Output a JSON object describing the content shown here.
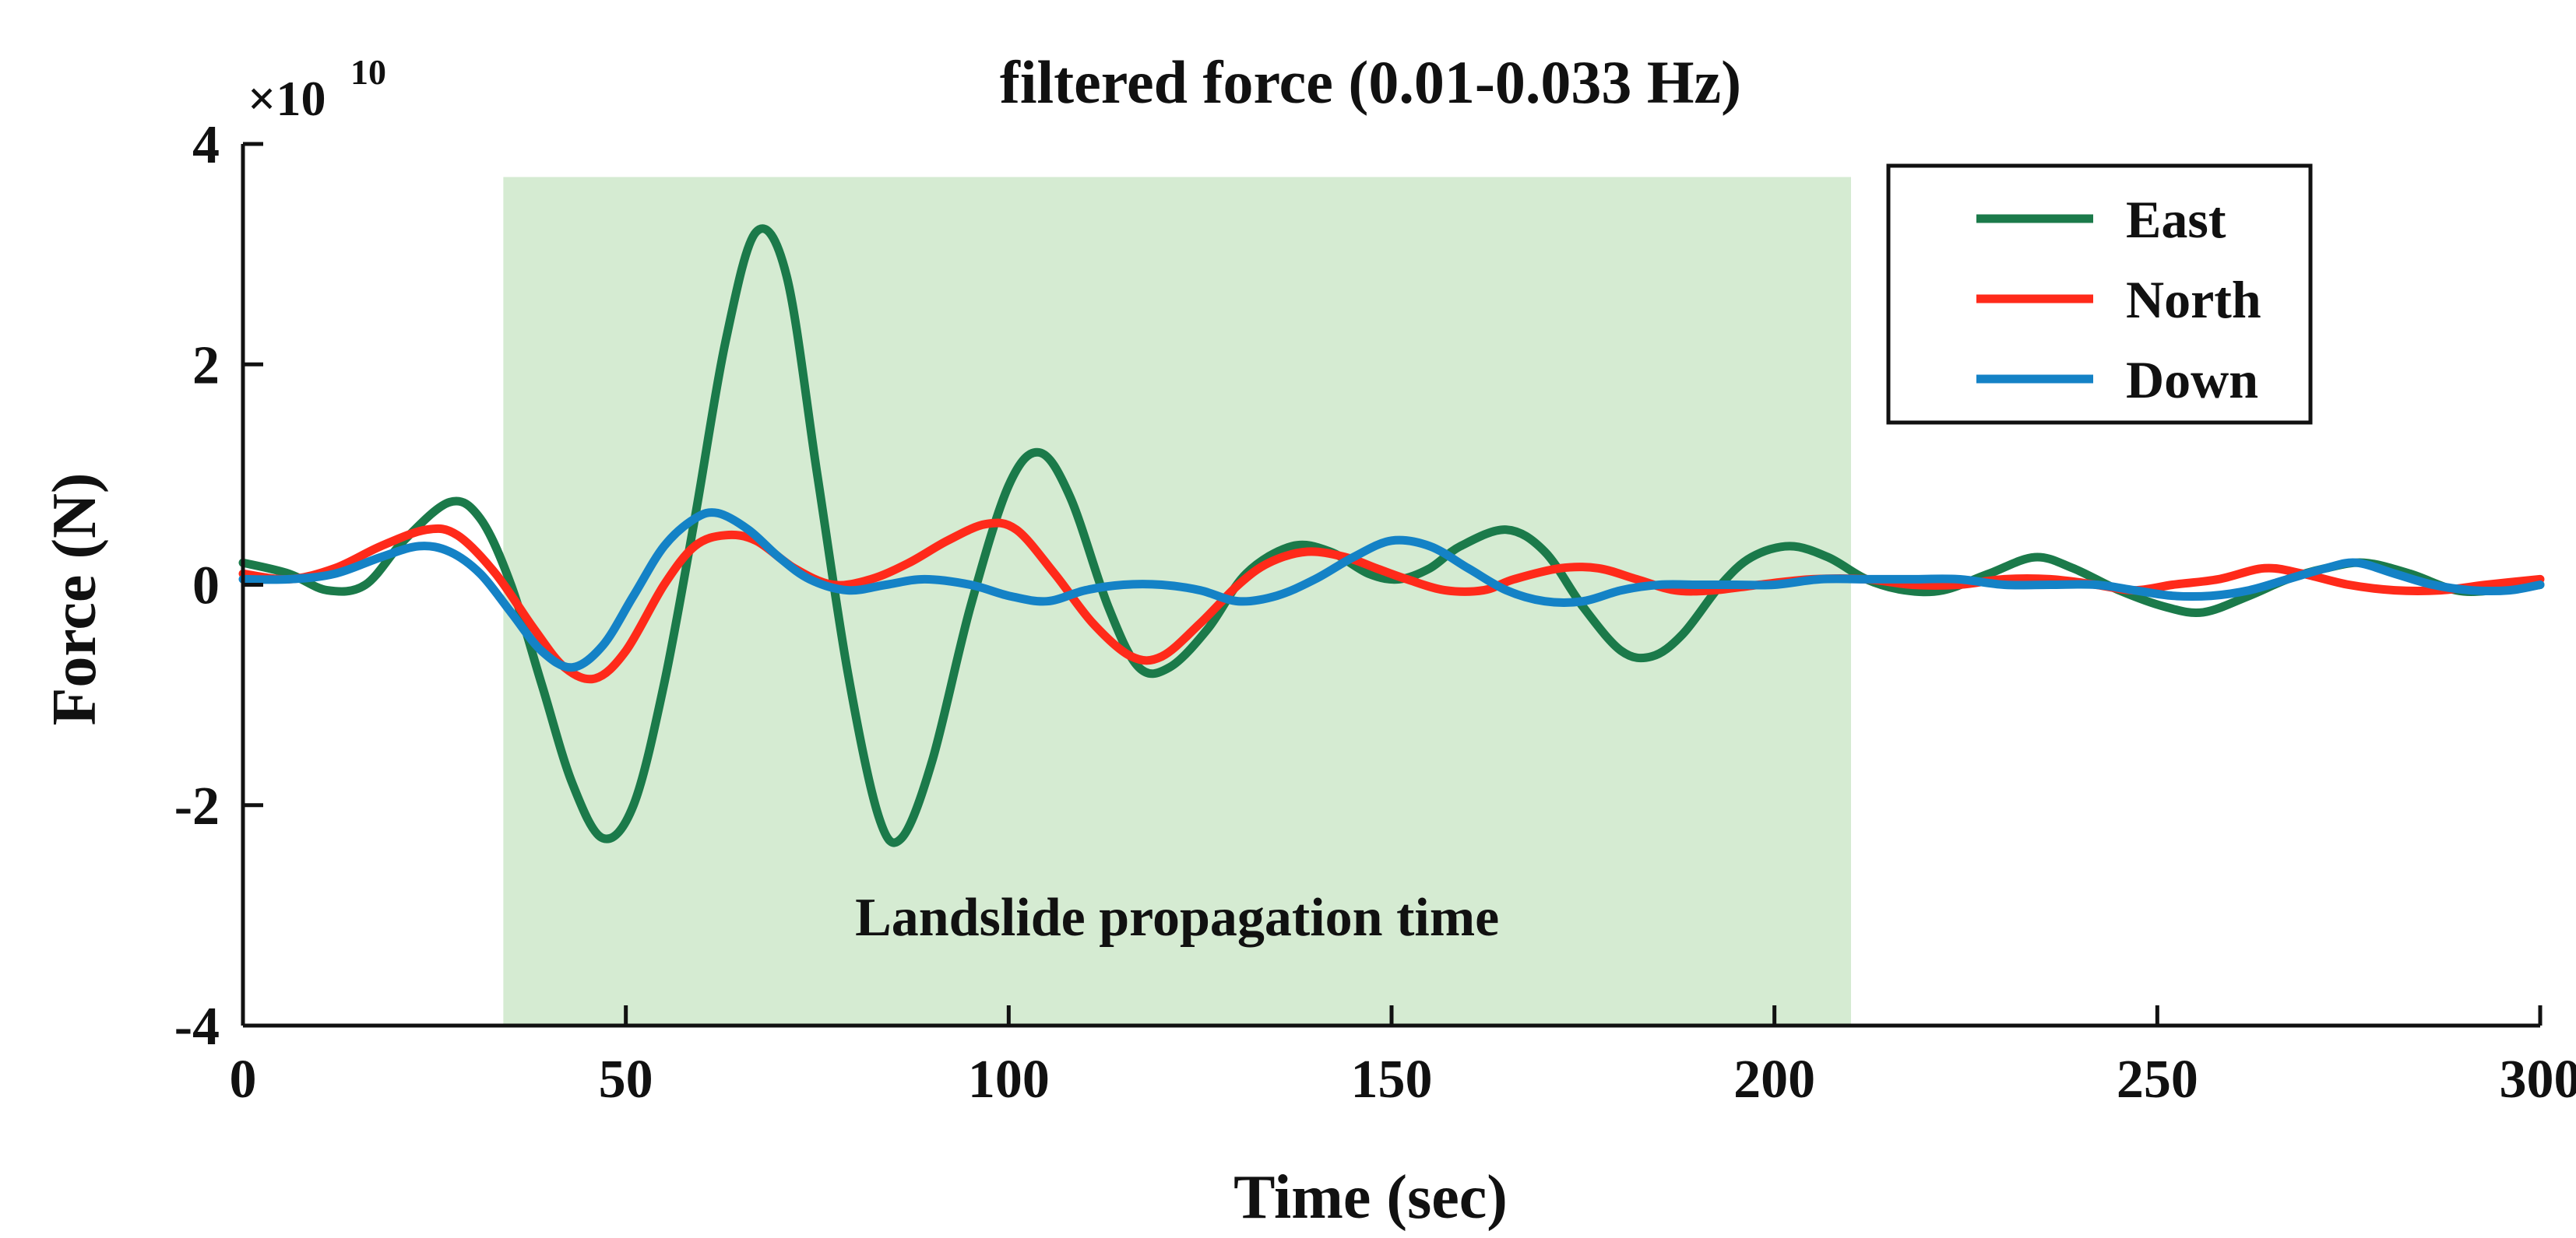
{
  "chart_data": {
    "type": "line",
    "title": "filtered force (0.01-0.033 Hz)",
    "xlabel": "Time (sec)",
    "ylabel": "Force (N)",
    "exponent_prefix": "×10",
    "exponent_power": "10",
    "xlim": [
      0,
      300
    ],
    "ylim": [
      -4,
      4
    ],
    "xticks": [
      0,
      50,
      100,
      150,
      200,
      250,
      300
    ],
    "yticks": [
      -4,
      -2,
      0,
      2,
      4
    ],
    "xtick_labels": [
      "0",
      "50",
      "100",
      "150",
      "200",
      "250",
      "300"
    ],
    "ytick_labels": [
      "-4",
      "-2",
      "0",
      "2",
      "4"
    ],
    "grid": false,
    "legend_position": "top-right",
    "shaded_region": {
      "x_start": 34,
      "x_end": 210,
      "y_start": -4,
      "y_end": 3.7,
      "label": "Landslide propagation time",
      "color": "#d5ebd2"
    },
    "series": [
      {
        "name": "East",
        "color": "#1b7a4a",
        "points": [
          [
            0,
            0.2
          ],
          [
            6,
            0.1
          ],
          [
            11,
            -0.05
          ],
          [
            16,
            0.0
          ],
          [
            21,
            0.4
          ],
          [
            27,
            0.75
          ],
          [
            31,
            0.6
          ],
          [
            35,
            0.0
          ],
          [
            39,
            -0.9
          ],
          [
            43,
            -1.8
          ],
          [
            47,
            -2.3
          ],
          [
            51,
            -2.0
          ],
          [
            55,
            -0.9
          ],
          [
            59,
            0.6
          ],
          [
            63,
            2.2
          ],
          [
            67,
            3.2
          ],
          [
            71,
            2.8
          ],
          [
            75,
            1.0
          ],
          [
            79,
            -0.8
          ],
          [
            83,
            -2.1
          ],
          [
            86,
            -2.3
          ],
          [
            90,
            -1.6
          ],
          [
            95,
            -0.2
          ],
          [
            100,
            0.9
          ],
          [
            104,
            1.2
          ],
          [
            108,
            0.8
          ],
          [
            113,
            -0.2
          ],
          [
            117,
            -0.75
          ],
          [
            121,
            -0.75
          ],
          [
            126,
            -0.4
          ],
          [
            131,
            0.1
          ],
          [
            137,
            0.35
          ],
          [
            142,
            0.3
          ],
          [
            147,
            0.1
          ],
          [
            151,
            0.05
          ],
          [
            155,
            0.15
          ],
          [
            159,
            0.35
          ],
          [
            165,
            0.5
          ],
          [
            170,
            0.3
          ],
          [
            175,
            -0.2
          ],
          [
            180,
            -0.6
          ],
          [
            184,
            -0.65
          ],
          [
            188,
            -0.45
          ],
          [
            193,
            0.0
          ],
          [
            197,
            0.25
          ],
          [
            202,
            0.35
          ],
          [
            207,
            0.25
          ],
          [
            212,
            0.05
          ],
          [
            217,
            -0.05
          ],
          [
            222,
            -0.05
          ],
          [
            228,
            0.1
          ],
          [
            234,
            0.25
          ],
          [
            239,
            0.15
          ],
          [
            245,
            -0.05
          ],
          [
            251,
            -0.2
          ],
          [
            256,
            -0.25
          ],
          [
            262,
            -0.1
          ],
          [
            267,
            0.05
          ],
          [
            272,
            0.15
          ],
          [
            277,
            0.2
          ],
          [
            283,
            0.1
          ],
          [
            289,
            -0.05
          ],
          [
            294,
            -0.05
          ],
          [
            300,
            0.0
          ]
        ]
      },
      {
        "name": "North",
        "color": "#ff2a1a",
        "points": [
          [
            0,
            0.1
          ],
          [
            6,
            0.05
          ],
          [
            12,
            0.15
          ],
          [
            18,
            0.35
          ],
          [
            24,
            0.5
          ],
          [
            28,
            0.45
          ],
          [
            33,
            0.1
          ],
          [
            38,
            -0.4
          ],
          [
            42,
            -0.75
          ],
          [
            46,
            -0.85
          ],
          [
            50,
            -0.6
          ],
          [
            55,
            0.0
          ],
          [
            59,
            0.35
          ],
          [
            63,
            0.45
          ],
          [
            67,
            0.4
          ],
          [
            72,
            0.15
          ],
          [
            77,
            0.0
          ],
          [
            82,
            0.05
          ],
          [
            87,
            0.2
          ],
          [
            92,
            0.4
          ],
          [
            97,
            0.55
          ],
          [
            101,
            0.5
          ],
          [
            106,
            0.1
          ],
          [
            111,
            -0.35
          ],
          [
            116,
            -0.65
          ],
          [
            120,
            -0.65
          ],
          [
            125,
            -0.35
          ],
          [
            130,
            0.0
          ],
          [
            134,
            0.2
          ],
          [
            139,
            0.3
          ],
          [
            144,
            0.25
          ],
          [
            148,
            0.15
          ],
          [
            152,
            0.05
          ],
          [
            157,
            -0.05
          ],
          [
            162,
            -0.05
          ],
          [
            166,
            0.05
          ],
          [
            172,
            0.15
          ],
          [
            177,
            0.15
          ],
          [
            182,
            0.05
          ],
          [
            187,
            -0.05
          ],
          [
            192,
            -0.05
          ],
          [
            198,
            0.0
          ],
          [
            205,
            0.05
          ],
          [
            212,
            0.05
          ],
          [
            218,
            0.0
          ],
          [
            224,
            0.0
          ],
          [
            230,
            0.05
          ],
          [
            236,
            0.05
          ],
          [
            242,
            0.0
          ],
          [
            247,
            -0.05
          ],
          [
            252,
            0.0
          ],
          [
            258,
            0.05
          ],
          [
            264,
            0.15
          ],
          [
            269,
            0.1
          ],
          [
            275,
            0.0
          ],
          [
            281,
            -0.05
          ],
          [
            287,
            -0.05
          ],
          [
            293,
            0.0
          ],
          [
            300,
            0.05
          ]
        ]
      },
      {
        "name": "Down",
        "color": "#1482c6",
        "points": [
          [
            0,
            0.05
          ],
          [
            6,
            0.05
          ],
          [
            12,
            0.1
          ],
          [
            18,
            0.25
          ],
          [
            23,
            0.35
          ],
          [
            27,
            0.3
          ],
          [
            31,
            0.1
          ],
          [
            35,
            -0.25
          ],
          [
            39,
            -0.6
          ],
          [
            43,
            -0.75
          ],
          [
            47,
            -0.55
          ],
          [
            51,
            -0.1
          ],
          [
            55,
            0.35
          ],
          [
            59,
            0.6
          ],
          [
            62,
            0.65
          ],
          [
            66,
            0.5
          ],
          [
            70,
            0.25
          ],
          [
            74,
            0.05
          ],
          [
            79,
            -0.05
          ],
          [
            84,
            0.0
          ],
          [
            89,
            0.05
          ],
          [
            95,
            0.0
          ],
          [
            100,
            -0.1
          ],
          [
            105,
            -0.15
          ],
          [
            110,
            -0.05
          ],
          [
            115,
            0.0
          ],
          [
            120,
            0.0
          ],
          [
            125,
            -0.05
          ],
          [
            130,
            -0.15
          ],
          [
            135,
            -0.1
          ],
          [
            140,
            0.05
          ],
          [
            145,
            0.25
          ],
          [
            150,
            0.4
          ],
          [
            155,
            0.35
          ],
          [
            160,
            0.15
          ],
          [
            165,
            -0.05
          ],
          [
            170,
            -0.15
          ],
          [
            175,
            -0.15
          ],
          [
            180,
            -0.05
          ],
          [
            185,
            0.0
          ],
          [
            190,
            0.0
          ],
          [
            195,
            0.0
          ],
          [
            200,
            0.0
          ],
          [
            206,
            0.05
          ],
          [
            212,
            0.05
          ],
          [
            218,
            0.05
          ],
          [
            224,
            0.05
          ],
          [
            230,
            0.0
          ],
          [
            236,
            0.0
          ],
          [
            242,
            0.0
          ],
          [
            247,
            -0.05
          ],
          [
            252,
            -0.1
          ],
          [
            257,
            -0.1
          ],
          [
            262,
            -0.05
          ],
          [
            267,
            0.05
          ],
          [
            272,
            0.15
          ],
          [
            276,
            0.2
          ],
          [
            281,
            0.1
          ],
          [
            286,
            0.0
          ],
          [
            291,
            -0.05
          ],
          [
            296,
            -0.05
          ],
          [
            300,
            0.0
          ]
        ]
      }
    ]
  }
}
